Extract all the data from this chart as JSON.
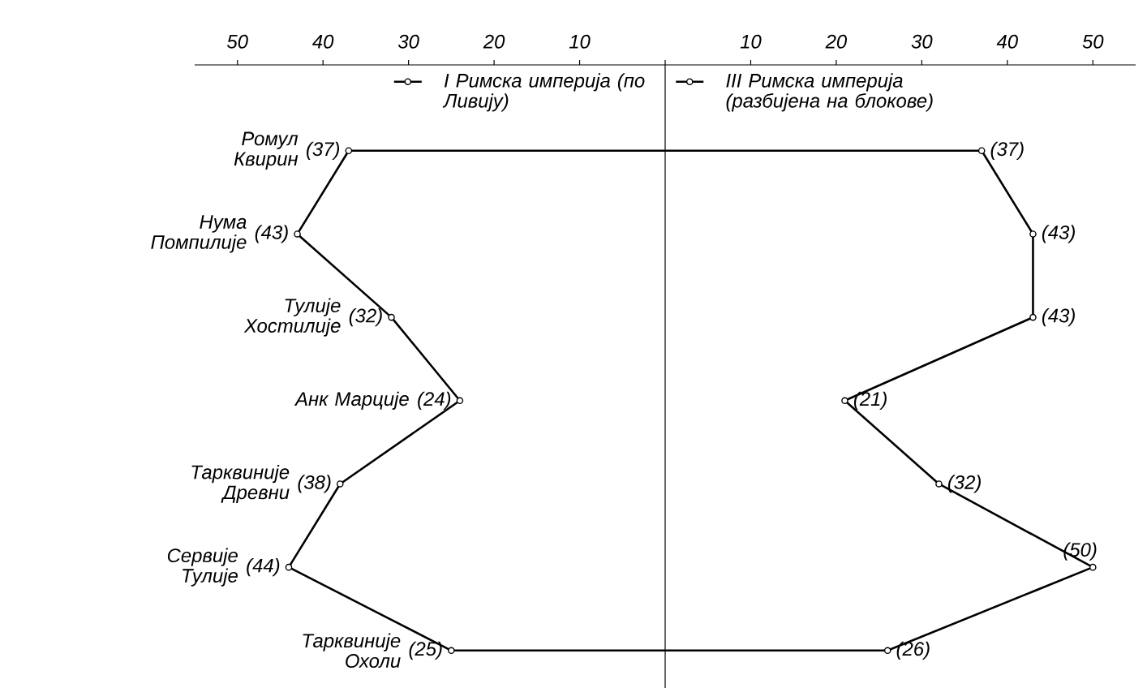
{
  "chart_data": {
    "type": "line",
    "orientation": "horizontal",
    "marker": "circle",
    "legend": "top",
    "categories": [
      "Ромул Квирин",
      "Нума Помпилије",
      "Тулије Хостилије",
      "Анк Марције",
      "Тарквиније Древни",
      "Сервије Тулије",
      "Тарквиније Охоли"
    ],
    "xlim": [
      -55,
      55
    ],
    "xticks": [
      {
        "value": -50,
        "label": "50"
      },
      {
        "value": -40,
        "label": "40"
      },
      {
        "value": -30,
        "label": "30"
      },
      {
        "value": -20,
        "label": "20"
      },
      {
        "value": -10,
        "label": "10"
      },
      {
        "value": 0,
        "label": null
      },
      10,
      20,
      30,
      40,
      50
    ],
    "series": [
      {
        "name": "I Римска империја (по Ливију)",
        "color": "#000000",
        "values": [
          -37,
          -43,
          -32,
          -24,
          -38,
          -44,
          -25
        ],
        "value_labels": [
          "(37)",
          "(43)",
          "(32)",
          "(24)",
          "(38)",
          "(44)",
          "(25)"
        ]
      },
      {
        "name": "III Римска империја (разбијена на блокове)",
        "color": "#000000",
        "values": [
          37,
          43,
          43,
          21,
          32,
          50,
          26
        ],
        "value_labels": [
          "(37)",
          "(43)",
          "(43)",
          "(21)",
          "(32)",
          "(50)",
          "(26)"
        ]
      },
      {
        "type": "line",
        "marker": "none",
        "color": "#000000",
        "x": [
          "Ромул Квирин",
          "Ромул Квирин"
        ],
        "values": [
          -37,
          37
        ]
      },
      {
        "type": "line",
        "marker": "none",
        "color": "#000000",
        "x": [
          "Тарквиније Охоли",
          "Тарквиније Охоли"
        ],
        "values": [
          -25,
          26
        ]
      }
    ],
    "ref_lines": [
      {
        "axis": "x",
        "value": 0
      }
    ]
  }
}
